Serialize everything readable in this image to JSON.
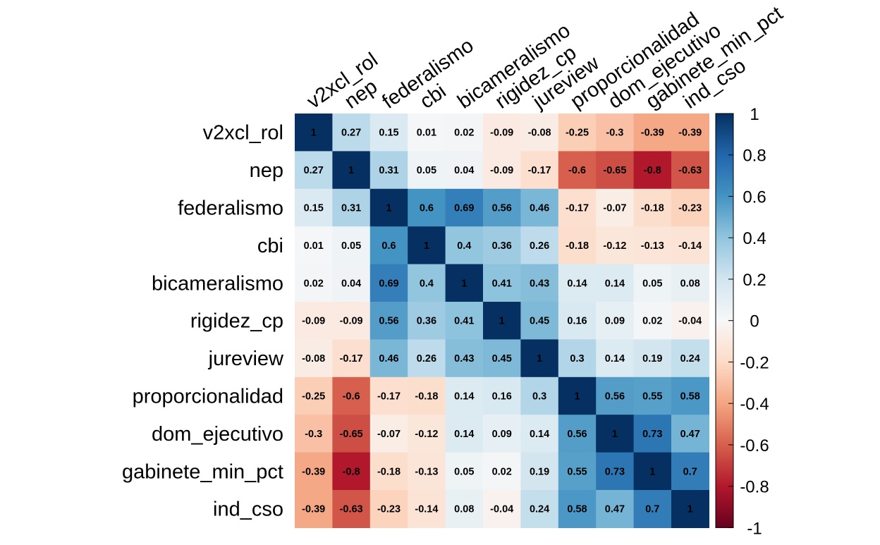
{
  "chart_data": {
    "type": "heatmap",
    "variables": [
      "v2xcl_rol",
      "nep",
      "federalismo",
      "cbi",
      "bicameralismo",
      "rigidez_cp",
      "jureview",
      "proporcionalidad",
      "dom_ejecutivo",
      "gabinete_min_pct",
      "ind_cso"
    ],
    "matrix": [
      [
        1,
        0.27,
        0.15,
        0.01,
        0.02,
        -0.09,
        -0.08,
        -0.25,
        -0.3,
        -0.39,
        -0.39
      ],
      [
        0.27,
        1,
        0.31,
        0.05,
        0.04,
        -0.09,
        -0.17,
        -0.6,
        -0.65,
        -0.8,
        -0.63
      ],
      [
        0.15,
        0.31,
        1,
        0.6,
        0.69,
        0.56,
        0.46,
        -0.17,
        -0.07,
        -0.18,
        -0.23
      ],
      [
        0.01,
        0.05,
        0.6,
        1,
        0.4,
        0.36,
        0.26,
        -0.18,
        -0.12,
        -0.13,
        -0.14
      ],
      [
        0.02,
        0.04,
        0.69,
        0.4,
        1,
        0.41,
        0.43,
        0.14,
        0.14,
        0.05,
        0.08
      ],
      [
        -0.09,
        -0.09,
        0.56,
        0.36,
        0.41,
        1,
        0.45,
        0.16,
        0.09,
        0.02,
        -0.04
      ],
      [
        -0.08,
        -0.17,
        0.46,
        0.26,
        0.43,
        0.45,
        1,
        0.3,
        0.14,
        0.19,
        0.24
      ],
      [
        -0.25,
        -0.6,
        -0.17,
        -0.18,
        0.14,
        0.16,
        0.3,
        1,
        0.56,
        0.55,
        0.58
      ],
      [
        -0.3,
        -0.65,
        -0.07,
        -0.12,
        0.14,
        0.09,
        0.14,
        0.56,
        1,
        0.73,
        0.47
      ],
      [
        -0.39,
        -0.8,
        -0.18,
        -0.13,
        0.05,
        0.02,
        0.19,
        0.55,
        0.73,
        1,
        0.7
      ],
      [
        -0.39,
        -0.63,
        -0.23,
        -0.14,
        0.08,
        -0.04,
        0.24,
        0.58,
        0.47,
        0.7,
        1
      ]
    ],
    "colorbar": {
      "range": [
        -1,
        1
      ],
      "ticks": [
        "1",
        "0.8",
        "0.6",
        "0.4",
        "0.2",
        "0",
        "-0.2",
        "-0.4",
        "-0.6",
        "-0.8",
        "-1"
      ]
    },
    "colors": {
      "negative_end": "#67001F",
      "neutral": "#F7F7F7",
      "positive_end": "#053061"
    },
    "legend_position": "right",
    "column_label_angle_deg": -35
  }
}
